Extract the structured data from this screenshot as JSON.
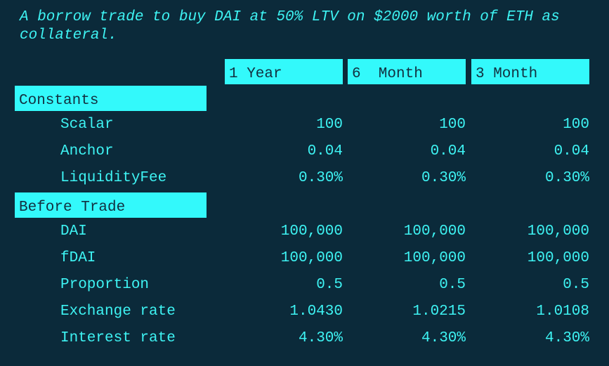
{
  "caption": "A borrow trade to buy DAI at 50% LTV on $2000 worth of ETH as collateral.",
  "table": {
    "columns": [
      "1 Year",
      "6  Month",
      "3 Month"
    ],
    "sections": [
      {
        "title": "Constants",
        "rows": [
          {
            "label": "Scalar",
            "values": [
              "100",
              "100",
              "100"
            ]
          },
          {
            "label": "Anchor",
            "values": [
              "0.04",
              "0.04",
              "0.04"
            ]
          },
          {
            "label": "LiquidityFee",
            "values": [
              "0.30%",
              "0.30%",
              "0.30%"
            ]
          }
        ]
      },
      {
        "title": "Before Trade",
        "rows": [
          {
            "label": "DAI",
            "values": [
              "100,000",
              "100,000",
              "100,000"
            ]
          },
          {
            "label": "fDAI",
            "values": [
              "100,000",
              "100,000",
              "100,000"
            ]
          },
          {
            "label": "Proportion",
            "values": [
              "0.5",
              "0.5",
              "0.5"
            ]
          },
          {
            "label": "Exchange rate",
            "values": [
              "1.0430",
              "1.0215",
              "1.0108"
            ]
          },
          {
            "label": "Interest rate",
            "values": [
              "4.30%",
              "4.30%",
              "4.30%"
            ]
          }
        ]
      }
    ]
  }
}
